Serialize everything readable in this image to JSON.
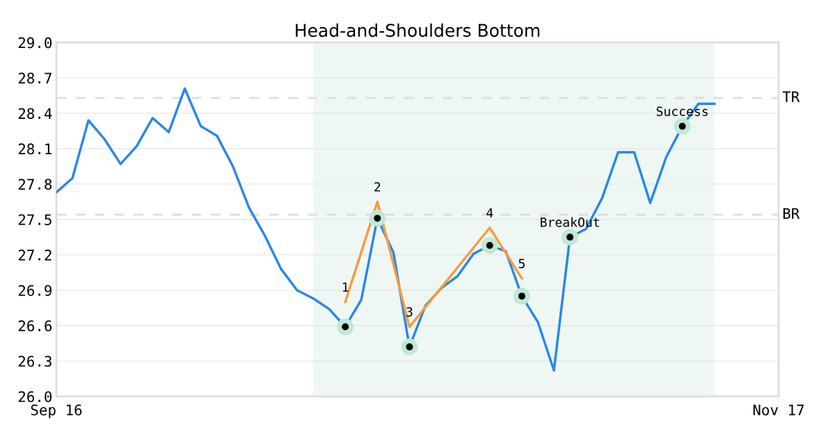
{
  "chart_data": {
    "type": "line",
    "title": "Head-and-Shoulders Bottom",
    "categories": [
      "Sep 16",
      null,
      null,
      null,
      null,
      null,
      null,
      null,
      null,
      null,
      null,
      null,
      null,
      null,
      null,
      null,
      null,
      null,
      null,
      null,
      null,
      null,
      null,
      null,
      null,
      null,
      null,
      null,
      null,
      null,
      null,
      null,
      null,
      null,
      null,
      null,
      null,
      null,
      null,
      null,
      null,
      null,
      null,
      null,
      null,
      "Nov 17"
    ],
    "series": [
      {
        "color": "#2b87e8",
        "values": [
          27.73,
          27.85,
          28.34,
          28.18,
          27.97,
          28.12,
          28.36,
          28.24,
          28.61,
          28.29,
          28.21,
          27.95,
          27.6,
          27.36,
          27.08,
          26.9,
          26.83,
          26.74,
          26.59,
          26.82,
          27.51,
          27.22,
          26.42,
          26.77,
          26.92,
          27.02,
          27.21,
          27.28,
          27.23,
          26.85,
          26.63,
          26.22,
          27.35,
          27.42,
          27.68,
          28.07,
          28.07,
          27.64,
          28.03,
          28.29,
          28.48,
          28.48,
          null,
          null,
          null,
          null
        ]
      },
      {
        "type": "line",
        "color": "#f89c3d",
        "values": [
          null,
          null,
          null,
          null,
          null,
          null,
          null,
          null,
          null,
          null,
          null,
          null,
          null,
          null,
          null,
          null,
          null,
          null,
          26.8,
          null,
          27.65,
          null,
          26.59,
          null,
          null,
          null,
          null,
          27.43,
          null,
          27.0,
          null,
          null,
          null,
          null,
          null,
          null,
          null,
          null,
          null,
          null,
          null,
          null,
          null,
          null,
          null,
          null
        ]
      },
      {
        "type": "scatter",
        "color": "#bfe9d5",
        "values": [
          null,
          null,
          null,
          null,
          null,
          null,
          null,
          null,
          null,
          null,
          null,
          null,
          null,
          null,
          null,
          null,
          null,
          null,
          26.59,
          null,
          27.51,
          null,
          26.42,
          null,
          null,
          null,
          null,
          27.28,
          null,
          26.85,
          null,
          null,
          27.35,
          null,
          null,
          null,
          null,
          null,
          null,
          28.29,
          null,
          null,
          null,
          null,
          null,
          null
        ]
      }
    ],
    "annotations": [
      "1",
      "2",
      "3",
      "4",
      "5",
      "BreakOut",
      "Success"
    ],
    "ref_lines": [
      {
        "axis": "y",
        "value": 28.53,
        "label": "TR",
        "color": "#dddddd",
        "line_style": "dashed"
      },
      {
        "axis": "y",
        "value": 27.54,
        "label": "BR",
        "color": "#dddddd",
        "line_style": "dashed"
      }
    ],
    "ylim": [
      26.0,
      29.0
    ],
    "yticks": [
      {
        "value": 26.0,
        "label": "26.0"
      },
      26.3,
      26.6,
      26.9,
      27.2,
      27.5,
      27.8,
      28.1,
      28.4,
      28.7,
      {
        "value": 29.0,
        "label": "29.0"
      }
    ],
    "grid": "y",
    "legend": false
  }
}
